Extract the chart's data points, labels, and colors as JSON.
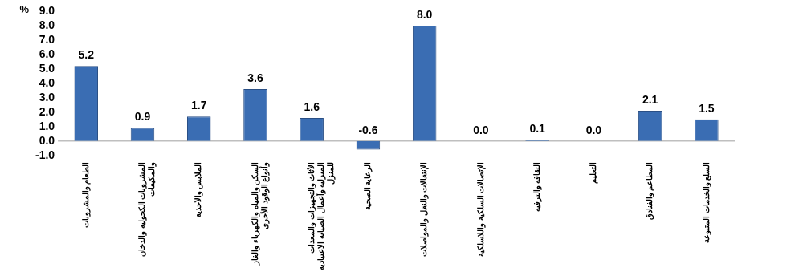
{
  "chart_data": {
    "type": "bar",
    "ylabel": "%",
    "categories": [
      "الطعام والمشروبات",
      "المشروبات الكحولية والدخان والمكيفات",
      "الملابس والأحذية",
      "السكن والمياه والكهرباء والغاز وأنواع الوقود الأخرى",
      "الأثاث والتجهيزات والمعدات المنزلية وأعمال الصيانة الاعتيادية للمنزل",
      "الرعاية الصحية",
      "الإنتقالات والنقل والمواصلات",
      "الإتصالات السلكية واللاسلكية",
      "الثقافة والترفيه",
      "التعليم",
      "المطاعم والفنادق",
      "السلع والخدمات المتنوعة"
    ],
    "values": [
      5.2,
      0.9,
      1.7,
      3.6,
      1.6,
      -0.6,
      8.0,
      0.0,
      0.1,
      0.0,
      2.1,
      1.5
    ],
    "value_labels": [
      "5.2",
      "0.9",
      "1.7",
      "3.6",
      "1.6",
      "-0.6",
      "8.0",
      "0.0",
      "0.1",
      "0.0",
      "2.1",
      "1.5"
    ],
    "color": "#3a6db3",
    "ylim": [
      -1,
      9
    ],
    "yticks": [
      {
        "value": -1,
        "label": "-1.0"
      },
      {
        "value": 0,
        "label": "0.0"
      },
      {
        "value": 1,
        "label": "1.0"
      },
      {
        "value": 2,
        "label": "2.0"
      },
      {
        "value": 3,
        "label": "3.0"
      },
      {
        "value": 4,
        "label": "4.0"
      },
      {
        "value": 5,
        "label": "5.0"
      },
      {
        "value": 6,
        "label": "6.0"
      },
      {
        "value": 7,
        "label": "7.0"
      },
      {
        "value": 8,
        "label": "8.0"
      },
      {
        "value": 9,
        "label": "9.0"
      }
    ],
    "grid": false,
    "legend": false
  }
}
